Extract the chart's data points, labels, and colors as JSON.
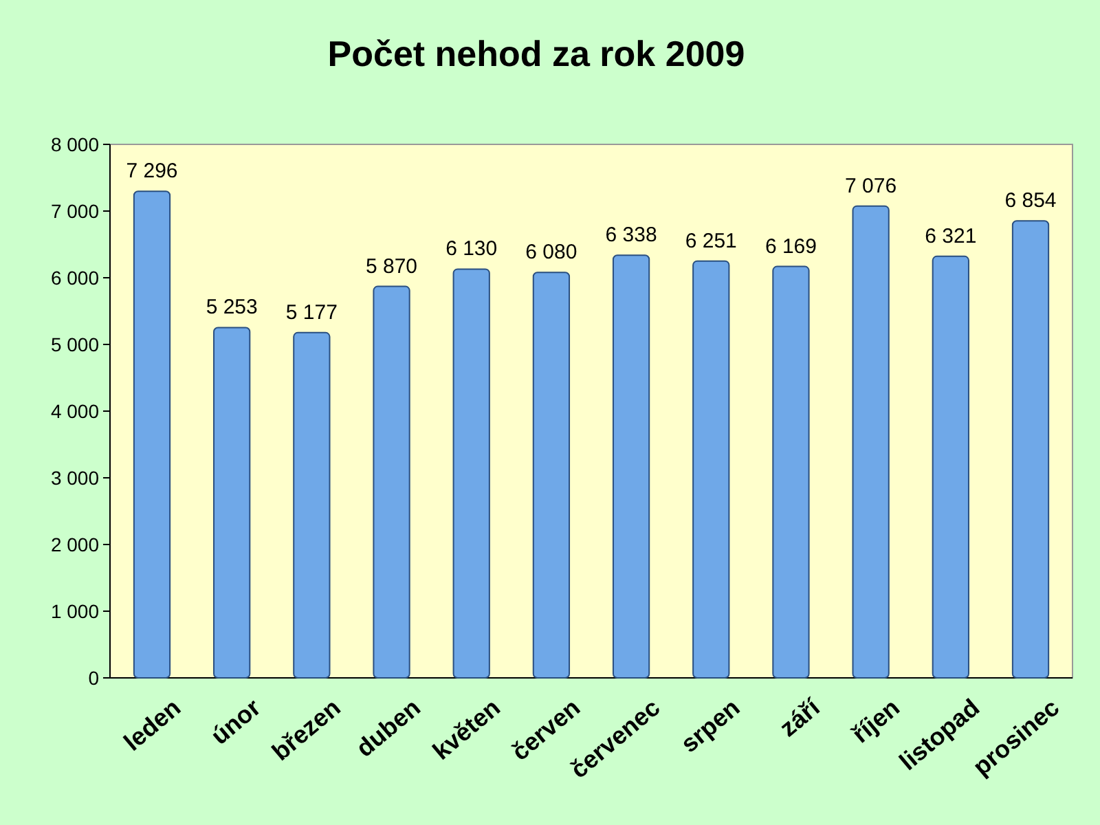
{
  "chart_data": {
    "type": "bar",
    "title": "Počet nehod za rok 2009",
    "categories": [
      "leden",
      "únor",
      "březen",
      "duben",
      "květen",
      "červen",
      "červenec",
      "srpen",
      "září",
      "říjen",
      "listopad",
      "prosinec"
    ],
    "values": [
      7296,
      5253,
      5177,
      5870,
      6130,
      6080,
      6338,
      6251,
      6169,
      7076,
      6321,
      6854
    ],
    "value_labels": [
      "7 296",
      "5 253",
      "5 177",
      "5 870",
      "6 130",
      "6 080",
      "6 338",
      "6 251",
      "6 169",
      "7 076",
      "6 321",
      "6 854"
    ],
    "color": "#6fa8e8",
    "ylim": [
      0,
      8000
    ],
    "yticks": [
      0,
      {
        "value": 1000,
        "label": "1 000"
      },
      {
        "value": 2000,
        "label": "2 000"
      },
      {
        "value": 3000,
        "label": "3 000"
      },
      {
        "value": 4000,
        "label": "4 000"
      },
      {
        "value": 5000,
        "label": "5 000"
      },
      {
        "value": 6000,
        "label": "6 000"
      },
      {
        "value": 7000,
        "label": "7 000"
      },
      {
        "value": 8000,
        "label": "8 000"
      }
    ],
    "grid": false
  }
}
